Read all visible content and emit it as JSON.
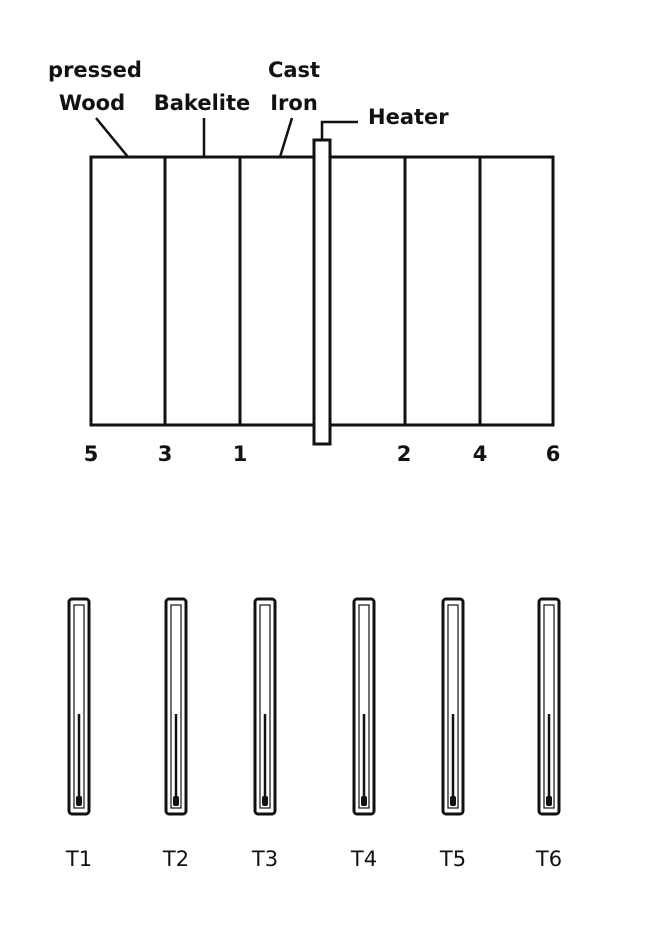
{
  "materials": {
    "pressed_line1": "pressed",
    "pressed_line2": "Wood",
    "bakelite": "Bakelite",
    "cast_line1": "Cast",
    "cast_line2": "Iron",
    "heater": "Heater"
  },
  "positions": [
    "5",
    "3",
    "1",
    "2",
    "4",
    "6"
  ],
  "thermometers": [
    "T1",
    "T2",
    "T3",
    "T4",
    "T5",
    "T6"
  ],
  "colors": {
    "ink": "#111111",
    "background": "#ffffff"
  }
}
